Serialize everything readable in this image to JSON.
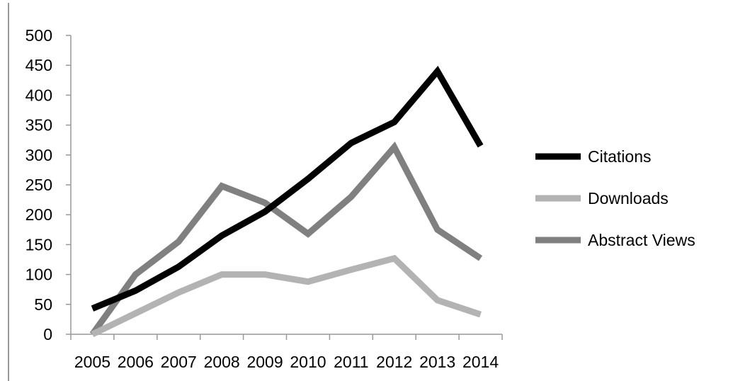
{
  "chart_data": {
    "type": "line",
    "title": "",
    "xlabel": "",
    "ylabel": "",
    "categories": [
      "2005",
      "2006",
      "2007",
      "2008",
      "2009",
      "2010",
      "2011",
      "2012",
      "2013",
      "2014"
    ],
    "ylim": [
      0,
      500
    ],
    "yticks": [
      "0",
      "50",
      "100",
      "150",
      "200",
      "250",
      "300",
      "350",
      "400",
      "450",
      "500"
    ],
    "grid": false,
    "legend_position": "right",
    "series": [
      {
        "name": "Citations",
        "color": "#000000",
        "values": [
          43,
          73,
          113,
          165,
          205,
          260,
          320,
          355,
          440,
          315
        ]
      },
      {
        "name": "Downloads",
        "color": "#b3b3b3",
        "values": [
          0,
          35,
          70,
          100,
          100,
          88,
          108,
          127,
          57,
          33
        ]
      },
      {
        "name": "Abstract Views",
        "color": "#808080",
        "values": [
          0,
          100,
          155,
          248,
          220,
          168,
          230,
          313,
          175,
          127
        ]
      }
    ]
  }
}
